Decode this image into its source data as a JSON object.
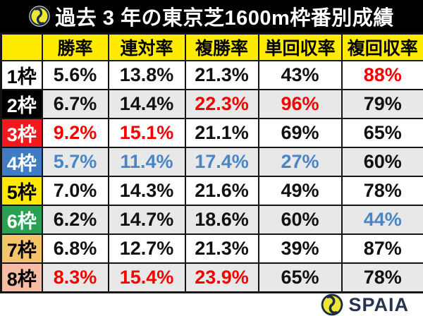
{
  "header": {
    "title": "過去 3 年の東京芝1600m枠番別成績",
    "logo_icon": "spaia-swirl-icon"
  },
  "footer": {
    "brand": "SPAIA",
    "logo_icon": "spaia-swirl-icon"
  },
  "palette": {
    "title_bg": "#000000",
    "title_fg": "#ffffff",
    "header_bg": "#ffeb00",
    "header_fg": "#000000",
    "border": "#141414",
    "row_bg": "#ffffff",
    "row_alt_bg": "#e8e8e8",
    "black": "#111111",
    "red": "#f70000",
    "blue": "#4a85c5",
    "logo_navy": "#1d2b45",
    "logo_yellow": "#ece831",
    "brand_navy": "#29324e"
  },
  "chart_data": {
    "type": "table",
    "title": "過去 3 年の東京芝1600m枠番別成績",
    "columns": [
      "",
      "勝率",
      "連対率",
      "複勝率",
      "単回収率",
      "複回収率"
    ],
    "rows": [
      {
        "label": "1枠",
        "bracket_bg": "#ffffff",
        "bracket_fg": "#000000",
        "stripe": "white",
        "values": [
          "5.6%",
          "13.8%",
          "21.3%",
          "43%",
          "88%"
        ],
        "value_colors": [
          "default",
          "default",
          "default",
          "default",
          "red"
        ]
      },
      {
        "label": "2枠",
        "bracket_bg": "#000000",
        "bracket_fg": "#ffffff",
        "stripe": "gray",
        "values": [
          "6.7%",
          "14.4%",
          "22.3%",
          "96%",
          "79%"
        ],
        "value_colors": [
          "default",
          "default",
          "red",
          "red",
          "default"
        ]
      },
      {
        "label": "3枠",
        "bracket_bg": "#f2181d",
        "bracket_fg": "#ffffff",
        "stripe": "white",
        "values": [
          "9.2%",
          "15.1%",
          "21.1%",
          "69%",
          "65%"
        ],
        "value_colors": [
          "red",
          "red",
          "default",
          "default",
          "default"
        ]
      },
      {
        "label": "4枠",
        "bracket_bg": "#3f7cc2",
        "bracket_fg": "#ffffff",
        "stripe": "gray",
        "values": [
          "5.7%",
          "11.4%",
          "17.4%",
          "27%",
          "60%"
        ],
        "value_colors": [
          "blue",
          "blue",
          "blue",
          "blue",
          "default"
        ]
      },
      {
        "label": "5枠",
        "bracket_bg": "#ffe900",
        "bracket_fg": "#000000",
        "stripe": "white",
        "values": [
          "7.0%",
          "14.3%",
          "21.6%",
          "49%",
          "78%"
        ],
        "value_colors": [
          "default",
          "default",
          "default",
          "default",
          "default"
        ]
      },
      {
        "label": "6枠",
        "bracket_bg": "#2aa152",
        "bracket_fg": "#ffffff",
        "stripe": "gray",
        "values": [
          "6.2%",
          "14.7%",
          "18.6%",
          "60%",
          "44%"
        ],
        "value_colors": [
          "default",
          "default",
          "default",
          "default",
          "blue"
        ]
      },
      {
        "label": "7枠",
        "bracket_bg": "#f7c569",
        "bracket_fg": "#000000",
        "stripe": "white",
        "values": [
          "6.8%",
          "12.7%",
          "21.3%",
          "39%",
          "87%"
        ],
        "value_colors": [
          "default",
          "default",
          "default",
          "default",
          "default"
        ]
      },
      {
        "label": "8枠",
        "bracket_bg": "#f4bda4",
        "bracket_fg": "#000000",
        "stripe": "gray",
        "values": [
          "8.3%",
          "15.4%",
          "23.9%",
          "65%",
          "78%"
        ],
        "value_colors": [
          "red",
          "red",
          "red",
          "default",
          "default"
        ]
      }
    ]
  }
}
